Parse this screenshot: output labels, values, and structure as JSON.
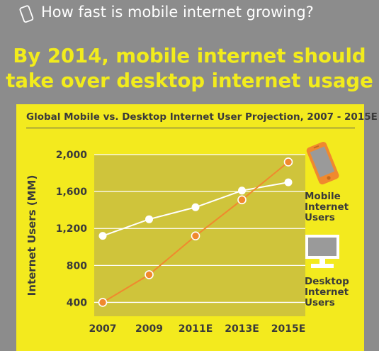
{
  "header": {
    "title": "How fast is mobile internet growing?",
    "icon": "smartphone-outline-icon"
  },
  "headline": {
    "line1": "By 2014, mobile internet should",
    "line2": "take over desktop internet usage"
  },
  "colors": {
    "background": "#8c8c8c",
    "panel": "#f3ea1e",
    "plot_area": "#cfc43b",
    "headline": "#f2ec1c",
    "mobile": "#f0892e",
    "desktop": "#ffffff"
  },
  "legend": {
    "mobile": {
      "lines": [
        "Mobile",
        "Internet",
        "Users"
      ],
      "icon": "smartphone-icon"
    },
    "desktop": {
      "lines": [
        "Desktop",
        "Internet",
        "Users"
      ],
      "icon": "desktop-computer-icon"
    }
  },
  "chart_data": {
    "type": "line",
    "title": "Global Mobile vs. Desktop Internet User Projection, 2007 - 2015E",
    "xlabel": "",
    "ylabel": "Internet Users (MM)",
    "x": [
      "2007",
      "2009",
      "2011E",
      "2013E",
      "2015E"
    ],
    "yticks": [
      "400",
      "800",
      "1,200",
      "1,600",
      "2,000"
    ],
    "ylim": [
      250,
      2000
    ],
    "grid": true,
    "legend_position": "right",
    "series": [
      {
        "name": "Mobile Internet Users",
        "values": [
          400,
          700,
          1120,
          1510,
          1920
        ]
      },
      {
        "name": "Desktop Internet Users",
        "values": [
          1120,
          1300,
          1430,
          1610,
          1700
        ]
      }
    ]
  }
}
